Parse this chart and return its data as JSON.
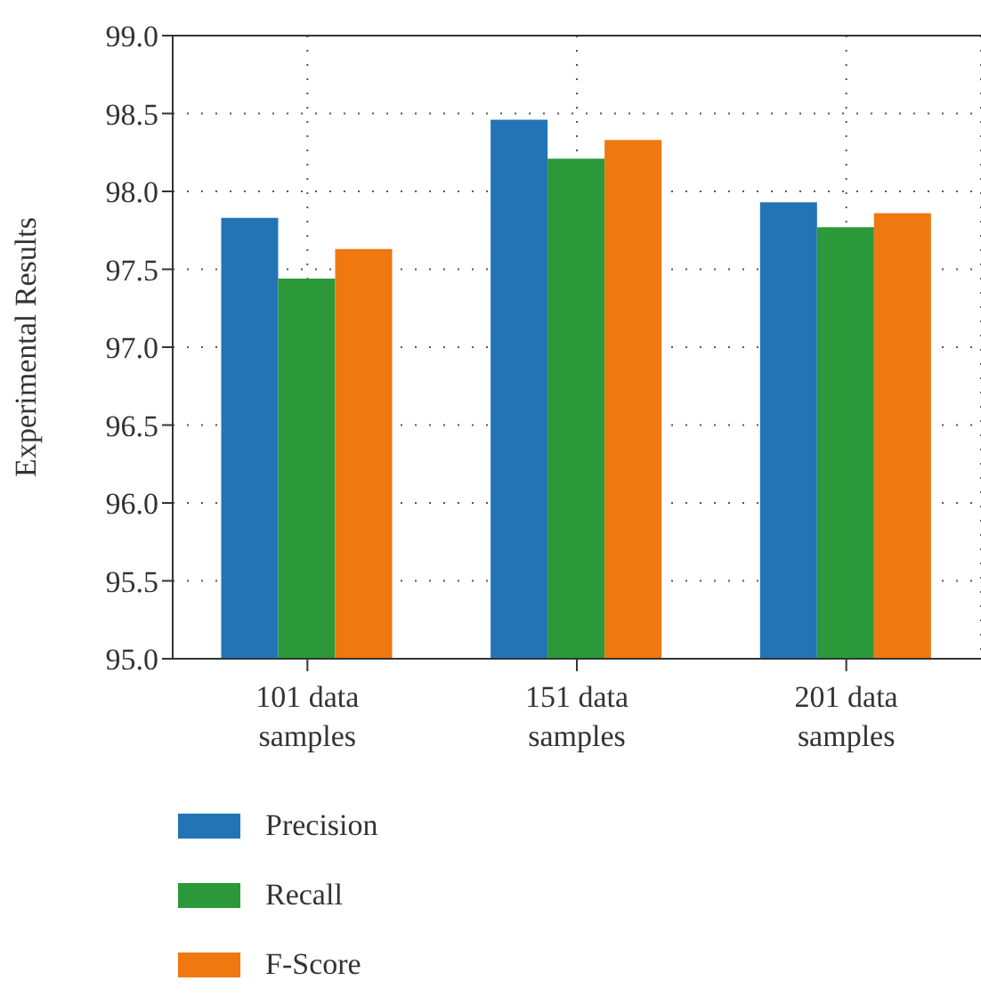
{
  "chart_data": {
    "type": "bar",
    "ylabel": "Experimental Results",
    "categories": [
      "101 data\nsamples",
      "151 data\nsamples",
      "201 data\nsamples"
    ],
    "series": [
      {
        "name": "Precision",
        "color": "#2274b5",
        "values": [
          97.83,
          98.46,
          97.93
        ]
      },
      {
        "name": "Recall",
        "color": "#2b9839",
        "values": [
          97.44,
          98.21,
          97.77
        ]
      },
      {
        "name": "F-Score",
        "color": "#ef7810",
        "values": [
          97.63,
          98.33,
          97.86
        ]
      }
    ],
    "ylim": [
      95,
      99
    ],
    "yticks": [
      {
        "value": 95,
        "label": "95.0"
      },
      95.5,
      {
        "value": 96,
        "label": "96.0"
      },
      96.5,
      {
        "value": 97,
        "label": "97.0"
      },
      97.5,
      {
        "value": 98,
        "label": "98.0"
      },
      98.5,
      {
        "value": 99,
        "label": "99.0"
      }
    ],
    "grid": true,
    "legend": "bottom"
  }
}
